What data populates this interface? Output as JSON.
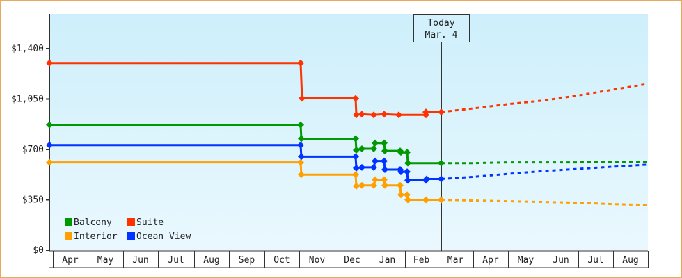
{
  "chart_data": {
    "type": "line",
    "title": "",
    "xlabel": "",
    "ylabel": "",
    "ylim": [
      0,
      1700
    ],
    "yticks": [
      0,
      350,
      700,
      1050,
      1400
    ],
    "ytick_labels": [
      "$0",
      "$350",
      "$700",
      "$1,050",
      "$1,400"
    ],
    "xtick_labels": [
      "Apr",
      "May",
      "Jun",
      "Jul",
      "Aug",
      "Sep",
      "Oct",
      "Nov",
      "Dec",
      "Jan",
      "Feb",
      "Mar",
      "Apr",
      "May",
      "Jun",
      "Jul",
      "Aug"
    ],
    "annotation": {
      "line1": "Today",
      "line2": "Mar. 4"
    },
    "legend": [
      {
        "name": "Balcony",
        "color": "#009900"
      },
      {
        "name": "Suite",
        "color": "#ff3300"
      },
      {
        "name": "Interior",
        "color": "#ffa000"
      },
      {
        "name": "Ocean View",
        "color": "#0033ff"
      }
    ],
    "series": [
      {
        "name": "Suite",
        "color": "#ff3300",
        "history": [
          [
            71,
            1300
          ],
          [
            432,
            1300
          ],
          [
            432,
            1300
          ],
          [
            434,
            1055
          ],
          [
            511,
            1055
          ],
          [
            512,
            940
          ],
          [
            520,
            945
          ],
          [
            537,
            940
          ],
          [
            552,
            945
          ],
          [
            573,
            940
          ],
          [
            612,
            940
          ],
          [
            612,
            960
          ],
          [
            634,
            960
          ]
        ],
        "forecast": [
          [
            634,
            960
          ],
          [
            680,
            985
          ],
          [
            730,
            1015
          ],
          [
            781,
            1040
          ],
          [
            831,
            1075
          ],
          [
            881,
            1115
          ],
          [
            931,
            1155
          ]
        ]
      },
      {
        "name": "Balcony",
        "color": "#009900",
        "history": [
          [
            71,
            870
          ],
          [
            432,
            870
          ],
          [
            433,
            775
          ],
          [
            511,
            775
          ],
          [
            512,
            695
          ],
          [
            520,
            705
          ],
          [
            537,
            705
          ],
          [
            539,
            745
          ],
          [
            552,
            745
          ],
          [
            553,
            690
          ],
          [
            575,
            690
          ],
          [
            576,
            680
          ],
          [
            585,
            680
          ],
          [
            586,
            605
          ],
          [
            634,
            605
          ]
        ],
        "forecast": [
          [
            634,
            605
          ],
          [
            680,
            605
          ],
          [
            730,
            610
          ],
          [
            781,
            610
          ],
          [
            831,
            610
          ],
          [
            881,
            615
          ],
          [
            931,
            615
          ]
        ]
      },
      {
        "name": "Ocean View",
        "color": "#0033ff",
        "history": [
          [
            71,
            730
          ],
          [
            432,
            730
          ],
          [
            433,
            650
          ],
          [
            511,
            650
          ],
          [
            512,
            570
          ],
          [
            520,
            575
          ],
          [
            537,
            575
          ],
          [
            539,
            620
          ],
          [
            552,
            620
          ],
          [
            553,
            560
          ],
          [
            575,
            560
          ],
          [
            576,
            545
          ],
          [
            585,
            545
          ],
          [
            586,
            485
          ],
          [
            612,
            485
          ],
          [
            613,
            495
          ],
          [
            634,
            495
          ]
        ],
        "forecast": [
          [
            634,
            495
          ],
          [
            680,
            510
          ],
          [
            730,
            530
          ],
          [
            781,
            550
          ],
          [
            831,
            565
          ],
          [
            881,
            580
          ],
          [
            931,
            595
          ]
        ]
      },
      {
        "name": "Interior",
        "color": "#ffa000",
        "history": [
          [
            71,
            610
          ],
          [
            432,
            610
          ],
          [
            433,
            525
          ],
          [
            511,
            525
          ],
          [
            512,
            445
          ],
          [
            520,
            450
          ],
          [
            537,
            450
          ],
          [
            539,
            490
          ],
          [
            552,
            490
          ],
          [
            553,
            450
          ],
          [
            575,
            450
          ],
          [
            576,
            385
          ],
          [
            585,
            385
          ],
          [
            586,
            350
          ],
          [
            612,
            350
          ],
          [
            634,
            350
          ]
        ],
        "forecast": [
          [
            634,
            350
          ],
          [
            680,
            345
          ],
          [
            730,
            340
          ],
          [
            781,
            335
          ],
          [
            831,
            330
          ],
          [
            881,
            320
          ],
          [
            931,
            315
          ]
        ]
      }
    ]
  }
}
